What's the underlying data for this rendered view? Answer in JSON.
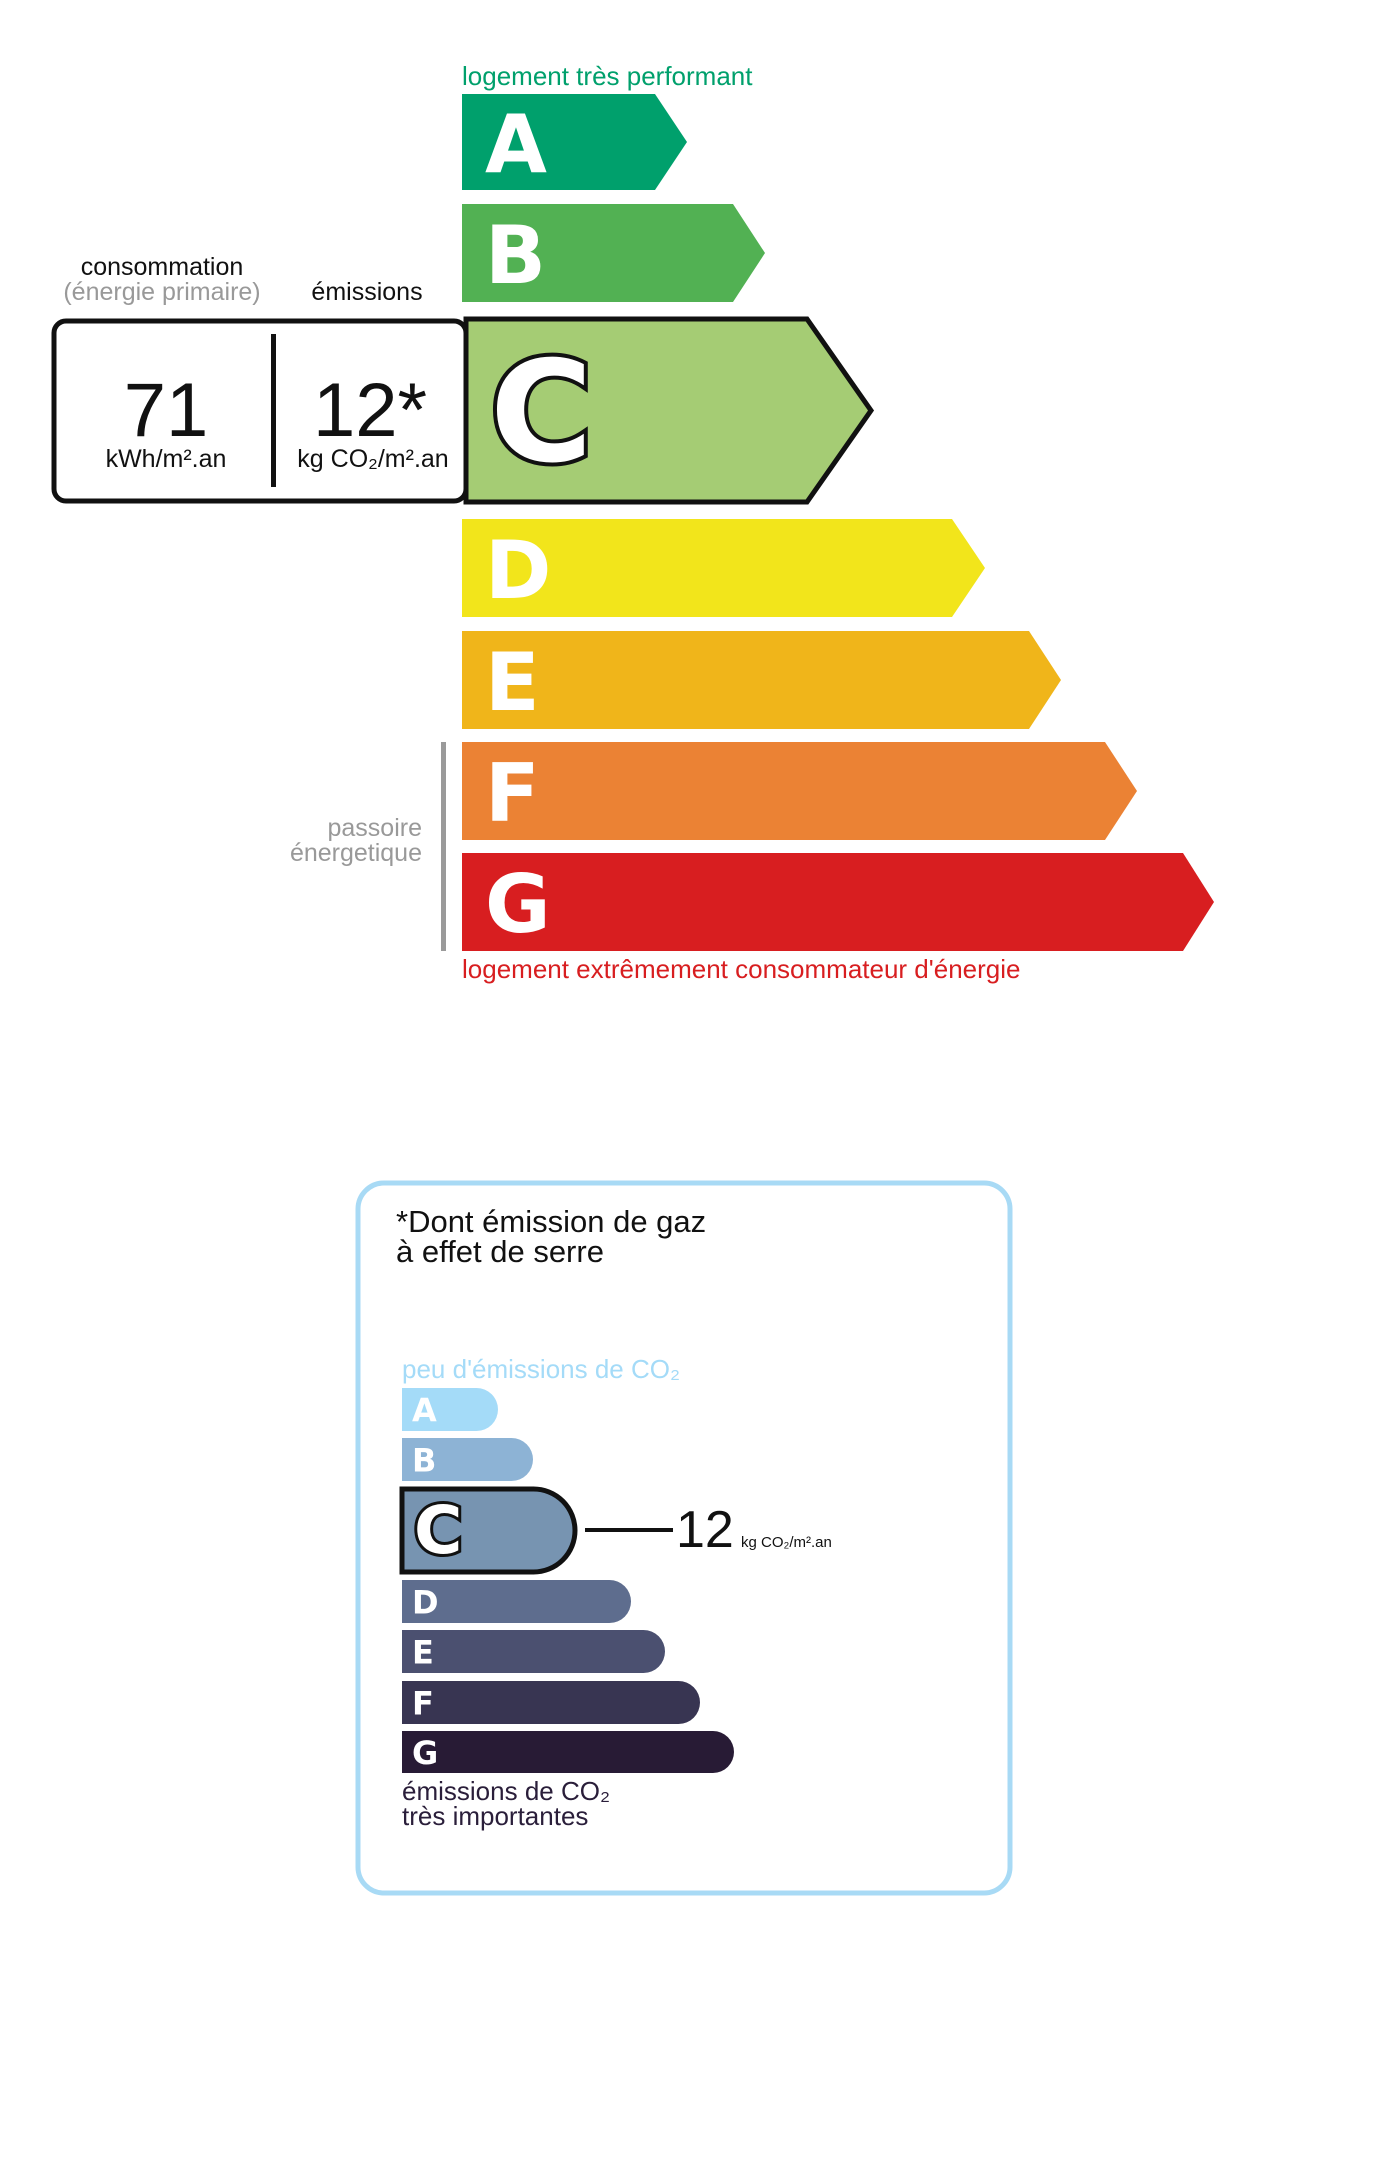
{
  "energy": {
    "top_label": "logement très performant",
    "bottom_label": "logement extrêmement consommateur d'énergie",
    "passoire": [
      "passoire",
      "énergetique"
    ],
    "consumption_heading": "consommation",
    "consumption_sub": "(énergie primaire)",
    "emissions_heading": "émissions",
    "consumption_value": "71",
    "consumption_unit": "kWh/m².an",
    "emissions_value": "12*",
    "emissions_unit": "kg CO₂/m².an",
    "current_class": "C",
    "classes": [
      {
        "letter": "A",
        "color": "#00a06c"
      },
      {
        "letter": "B",
        "color": "#52b153"
      },
      {
        "letter": "C",
        "color": "#a5cc74"
      },
      {
        "letter": "D",
        "color": "#f2e51b"
      },
      {
        "letter": "E",
        "color": "#f0b51a"
      },
      {
        "letter": "F",
        "color": "#eb8234"
      },
      {
        "letter": "G",
        "color": "#d81e20"
      }
    ],
    "top_label_color": "#00a06c",
    "bottom_label_color": "#d81e20"
  },
  "ges": {
    "title": [
      "*Dont émission de gaz",
      "à effet de serre"
    ],
    "top_label": "peu d'émissions de CO₂",
    "bottom_label": [
      "émissions de CO₂",
      "très importantes"
    ],
    "value": "12",
    "unit": "kg CO₂/m².an",
    "current_class": "C",
    "border_color": "#a8daf5",
    "classes": [
      {
        "letter": "A",
        "color": "#a4dbf8"
      },
      {
        "letter": "B",
        "color": "#8db3d5"
      },
      {
        "letter": "C",
        "color": "#7794b1"
      },
      {
        "letter": "D",
        "color": "#5e6d8e"
      },
      {
        "letter": "E",
        "color": "#4b5070"
      },
      {
        "letter": "F",
        "color": "#383552"
      },
      {
        "letter": "G",
        "color": "#281b35"
      }
    ]
  }
}
